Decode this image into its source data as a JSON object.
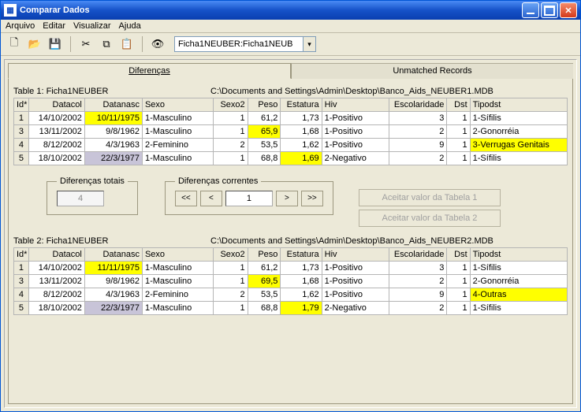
{
  "window": {
    "title": "Comparar Dados"
  },
  "menu": {
    "arquivo": "Arquivo",
    "editar": "Editar",
    "visualizar": "Visualizar",
    "ajuda": "Ajuda"
  },
  "toolbar": {
    "combo_value": "Ficha1NEUBER:Ficha1NEUB"
  },
  "tabs": {
    "diferencas": "Diferenças",
    "unmatched": "Unmatched Records"
  },
  "table1": {
    "label": "Table 1:   Ficha1NEUBER",
    "path": "C:\\Documents and Settings\\Admin\\Desktop\\Banco_Aids_NEUBER1.MDB"
  },
  "table2": {
    "label": "Table 2:   Ficha1NEUBER",
    "path": "C:\\Documents and Settings\\Admin\\Desktop\\Banco_Aids_NEUBER2.MDB"
  },
  "columns": {
    "id": "Id*",
    "datacol": "Datacol",
    "datanasc": "Datanasc",
    "sexo": "Sexo",
    "sexo2": "Sexo2",
    "peso": "Peso",
    "estatura": "Estatura",
    "hiv": "Hiv",
    "escolaridade": "Escolaridade",
    "dst": "Dst",
    "tipodst": "Tipodst"
  },
  "rows1": [
    {
      "id": "1",
      "datacol": "14/10/2002",
      "datanasc": "10/11/1975",
      "datanasc_hl": "yellow",
      "sexo": "1-Masculino",
      "sexo2": "1",
      "peso": "61,2",
      "estatura": "1,73",
      "hiv": "1-Positivo",
      "escol": "3",
      "dst": "1",
      "tipodst": "1-Sífilis"
    },
    {
      "id": "3",
      "datacol": "13/11/2002",
      "datanasc": "9/8/1962",
      "sexo": "1-Masculino",
      "sexo2": "1",
      "peso": "65,9",
      "peso_hl": "yellow",
      "estatura": "1,68",
      "hiv": "1-Positivo",
      "escol": "2",
      "dst": "1",
      "tipodst": "2-Gonorréia"
    },
    {
      "id": "4",
      "datacol": "8/12/2002",
      "datanasc": "4/3/1963",
      "sexo": "2-Feminino",
      "sexo2": "2",
      "peso": "53,5",
      "estatura": "1,62",
      "hiv": "1-Positivo",
      "escol": "9",
      "dst": "1",
      "tipodst": "3-Verrugas Genitais",
      "tipodst_hl": "yellow"
    },
    {
      "id": "5",
      "datacol": "18/10/2002",
      "datanasc": "22/3/1977",
      "datanasc_hl": "gray",
      "sexo": "1-Masculino",
      "sexo2": "1",
      "peso": "68,8",
      "estatura": "1,69",
      "estatura_hl": "yellow",
      "hiv": "2-Negativo",
      "escol": "2",
      "dst": "1",
      "tipodst": "1-Sífilis"
    }
  ],
  "rows2": [
    {
      "id": "1",
      "datacol": "14/10/2002",
      "datanasc": "11/11/1975",
      "datanasc_hl": "yellow",
      "sexo": "1-Masculino",
      "sexo2": "1",
      "peso": "61,2",
      "estatura": "1,73",
      "hiv": "1-Positivo",
      "escol": "3",
      "dst": "1",
      "tipodst": "1-Sífilis"
    },
    {
      "id": "3",
      "datacol": "13/11/2002",
      "datanasc": "9/8/1962",
      "sexo": "1-Masculino",
      "sexo2": "1",
      "peso": "69,5",
      "peso_hl": "yellow",
      "estatura": "1,68",
      "hiv": "1-Positivo",
      "escol": "2",
      "dst": "1",
      "tipodst": "2-Gonorréia"
    },
    {
      "id": "4",
      "datacol": "8/12/2002",
      "datanasc": "4/3/1963",
      "sexo": "2-Feminino",
      "sexo2": "2",
      "peso": "53,5",
      "estatura": "1,62",
      "hiv": "1-Positivo",
      "escol": "9",
      "dst": "1",
      "tipodst": "4-Outras",
      "tipodst_hl": "yellow"
    },
    {
      "id": "5",
      "datacol": "18/10/2002",
      "datanasc": "22/3/1977",
      "datanasc_hl": "gray",
      "sexo": "1-Masculino",
      "sexo2": "1",
      "peso": "68,8",
      "estatura": "1,79",
      "estatura_hl": "yellow",
      "hiv": "2-Negativo",
      "escol": "2",
      "dst": "1",
      "tipodst": "1-Sífilis"
    }
  ],
  "mid": {
    "totais_label": "Diferenças totais",
    "totais_value": "4",
    "correntes_label": "Diferenças correntes",
    "nav_value": "1",
    "aceitar1": "Aceitar valor da Tabela 1",
    "aceitar2": "Aceitar valor da Tabela 2",
    "nav_first": "<<",
    "nav_prev": "<",
    "nav_next": ">",
    "nav_last": ">>"
  }
}
